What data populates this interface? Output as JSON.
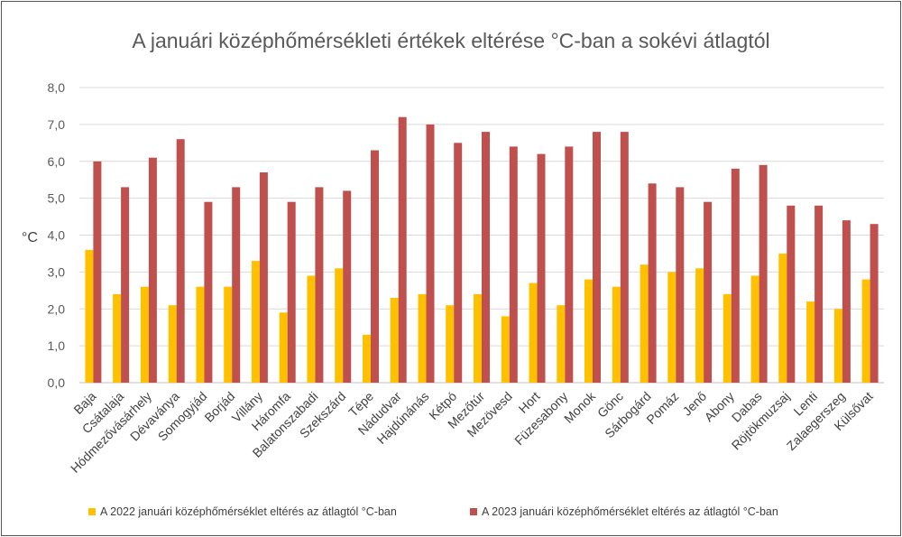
{
  "chart_data": {
    "type": "bar",
    "title": "A januári középhőmérsékleti értékek eltérése °C-ban a sokévi átlagtól",
    "ylabel": "°C",
    "xlabel": "",
    "ylim": [
      0,
      8
    ],
    "yticks": [
      "0,0",
      "1,0",
      "2,0",
      "3,0",
      "4,0",
      "5,0",
      "6,0",
      "7,0",
      "8,0"
    ],
    "grid": true,
    "legend_position": "bottom",
    "categories": [
      "Baja",
      "Csátalaja",
      "Hódmezővásárhely",
      "Dévaványa",
      "Somogyjád",
      "Borjád",
      "Villány",
      "Háromfa",
      "Balatonszabadi",
      "Szekszárd",
      "Tépe",
      "Nádudvar",
      "Hajdúnánás",
      "Kétpó",
      "Mezőtúr",
      "Mezövesd",
      "Hort",
      "Füzesabony",
      "Monok",
      "Gönc",
      "Sárbogárd",
      "Pomáz",
      "Jenő",
      "Abony",
      "Dabas",
      "Röjtökmuzsaj",
      "Lenti",
      "Zalaegerszeg",
      "Külsővat"
    ],
    "series": [
      {
        "name": "A 2022  januári középhőmérséklet eltérés az átlagtól  °C-ban",
        "color": "#FFC000",
        "values": [
          3.6,
          2.4,
          2.6,
          2.1,
          2.6,
          2.6,
          3.3,
          1.9,
          2.9,
          3.1,
          1.3,
          2.3,
          2.4,
          2.1,
          2.4,
          1.8,
          2.7,
          2.1,
          2.8,
          2.6,
          3.2,
          3.0,
          3.1,
          2.4,
          2.9,
          3.5,
          2.2,
          2.0,
          2.8
        ]
      },
      {
        "name": "A 2023 januári középhőmérséklet eltérés az átlagtól  °C-ban",
        "color": "#C0504D",
        "values": [
          6.0,
          5.3,
          6.1,
          6.6,
          4.9,
          5.3,
          5.7,
          4.9,
          5.3,
          5.2,
          6.3,
          7.2,
          7.0,
          6.5,
          6.8,
          6.4,
          6.2,
          6.4,
          6.8,
          6.8,
          5.4,
          5.3,
          4.9,
          5.8,
          5.9,
          4.8,
          4.8,
          4.4,
          4.3
        ]
      }
    ]
  }
}
